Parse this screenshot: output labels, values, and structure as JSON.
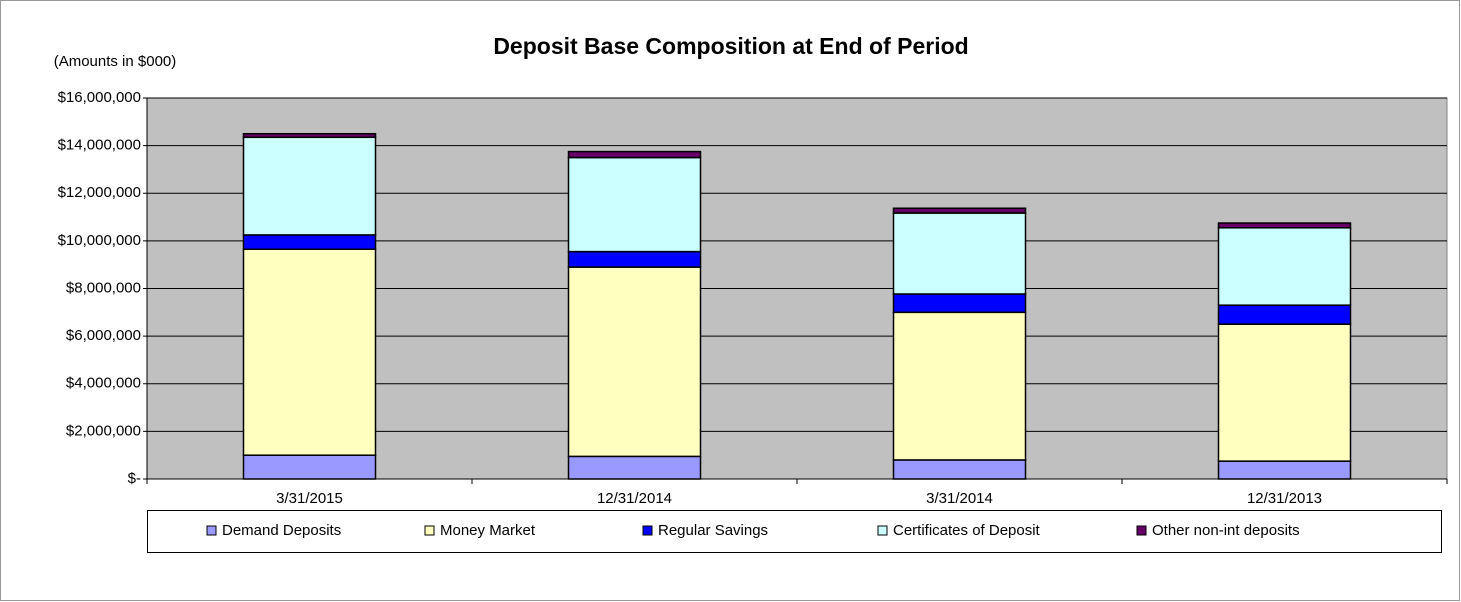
{
  "chart_data": {
    "type": "stacked_bar",
    "title": "Deposit Base Composition at End of Period",
    "subtitle": "(Amounts in $000)",
    "categories": [
      "3/31/2015",
      "12/31/2014",
      "3/31/2014",
      "12/31/2013"
    ],
    "series": [
      {
        "name": "Demand Deposits",
        "color": "#9999ff",
        "values": [
          1000000,
          950000,
          800000,
          750000
        ]
      },
      {
        "name": "Money Market",
        "color": "#ffffc0",
        "values": [
          8650000,
          7950000,
          6200000,
          5750000
        ]
      },
      {
        "name": "Regular Savings",
        "color": "#0000ff",
        "values": [
          600000,
          650000,
          770000,
          800000
        ]
      },
      {
        "name": "Certificates of Deposit",
        "color": "#ccffff",
        "values": [
          4100000,
          3950000,
          3400000,
          3250000
        ]
      },
      {
        "name": "Other non-int deposits",
        "color": "#660066",
        "values": [
          150000,
          250000,
          200000,
          200000
        ]
      }
    ],
    "ylim": [
      0,
      16000000
    ],
    "yticks": [
      {
        "value": 0,
        "label": "$-"
      },
      {
        "value": 2000000,
        "label": "$2,000,000"
      },
      {
        "value": 4000000,
        "label": "$4,000,000"
      },
      {
        "value": 6000000,
        "label": "$6,000,000"
      },
      {
        "value": 8000000,
        "label": "$8,000,000"
      },
      {
        "value": 10000000,
        "label": "$10,000,000"
      },
      {
        "value": 12000000,
        "label": "$12,000,000"
      },
      {
        "value": 14000000,
        "label": "$14,000,000"
      },
      {
        "value": 16000000,
        "label": "$16,000,000"
      }
    ],
    "grid": true,
    "legend": "bottom"
  }
}
